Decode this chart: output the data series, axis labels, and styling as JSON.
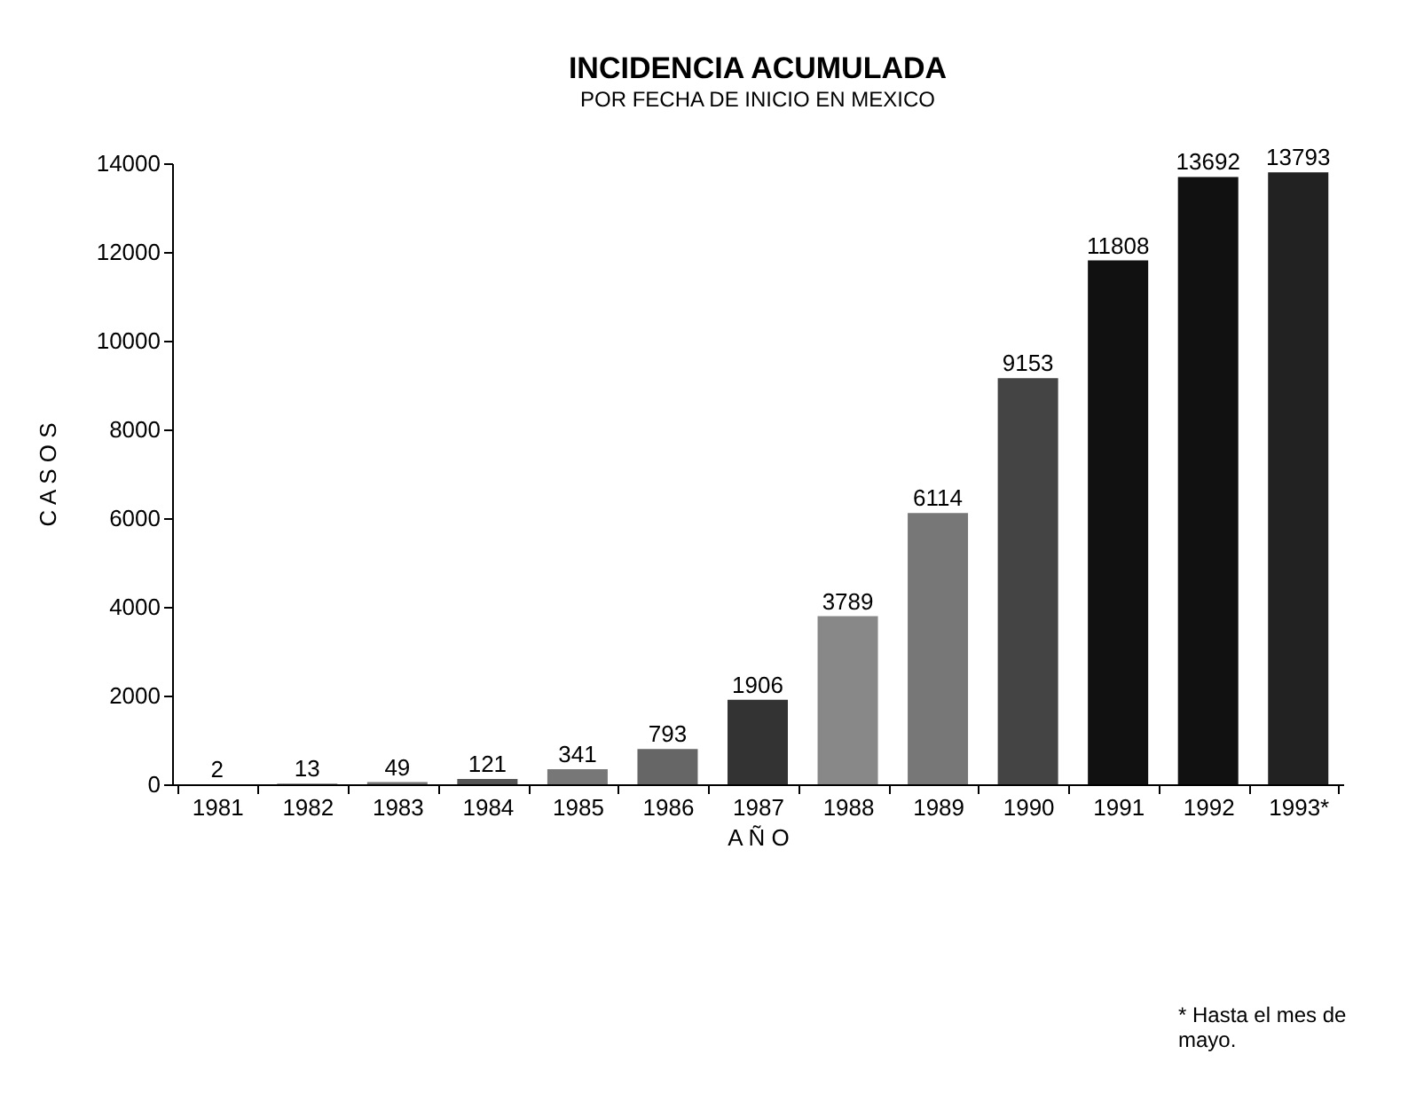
{
  "chart_data": {
    "type": "bar",
    "title": "INCIDENCIA ACUMULADA",
    "subtitle": "POR FECHA DE INICIO EN MEXICO",
    "xlabel": "A Ñ O",
    "ylabel": "C A S O S",
    "categories": [
      "1981",
      "1982",
      "1983",
      "1984",
      "1985",
      "1986",
      "1987",
      "1988",
      "1989",
      "1990",
      "1991",
      "1992",
      "1993*"
    ],
    "values": [
      2,
      13,
      49,
      121,
      341,
      793,
      1906,
      3789,
      6114,
      9153,
      11808,
      13692,
      13793
    ],
    "colors": [
      "#777777",
      "#777777",
      "#777777",
      "#555555",
      "#777777",
      "#666666",
      "#333333",
      "#888888",
      "#777777",
      "#444444",
      "#111111",
      "#111111",
      "#222222"
    ],
    "ylim": [
      0,
      14000
    ],
    "yticks": [
      0,
      2000,
      4000,
      6000,
      8000,
      10000,
      12000,
      14000
    ],
    "grid": false,
    "data_labels": true,
    "annotations": [
      "* Hasta el mes de mayo."
    ]
  }
}
